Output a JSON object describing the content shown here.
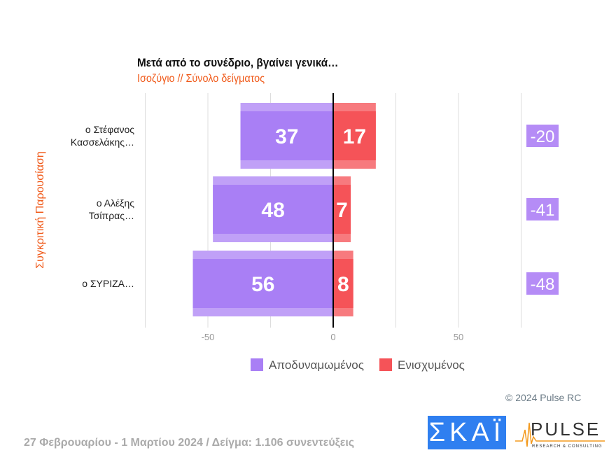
{
  "chart_data": {
    "type": "bar",
    "orientation": "horizontal-diverging",
    "title": "Μετά από το συνέδριο, βγαίνει γενικά…",
    "subtitle": "Ισοζύγιο // Σύνολο δείγματος",
    "ylabel": "Συγκριτική  Παρουσίαση",
    "categories": [
      "ο Στέφανος Κασσελάκης…",
      "ο Αλέξης Τσίπρας…",
      "ο ΣΥΡΙΖΑ…"
    ],
    "series": [
      {
        "name": "Αποδυναμωμένος",
        "values": [
          37,
          48,
          56
        ],
        "color": "#a97ff5"
      },
      {
        "name": "Ενισχυμένος",
        "values": [
          17,
          7,
          8
        ],
        "color": "#f55358"
      }
    ],
    "balance": [
      -20,
      -41,
      -48
    ],
    "xlim": [
      -75,
      75
    ],
    "xticks": [
      -50,
      0,
      50
    ],
    "grid": true,
    "legend": "bottom"
  },
  "copyright": "© 2024 Pulse RC",
  "footer": "27 Φεβρουαρίου - 1 Μαρτίου 2024  /  Δείγμα:  1.106 συνεντεύξεις",
  "logos": {
    "skai": "ΣΚΑΪ",
    "pulse": "PULSE",
    "pulse_sub": "RESEARCH & CONSULTING"
  }
}
